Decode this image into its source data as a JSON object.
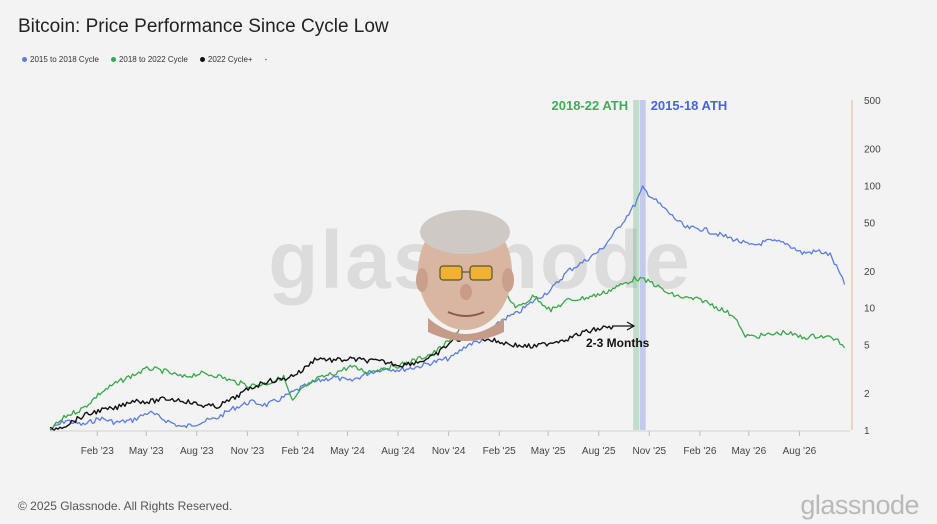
{
  "header": {
    "title": "Bitcoin: Price Performance Since Cycle Low"
  },
  "legend": {
    "items": [
      {
        "label": "2015 to 2018 Cycle",
        "color": "#5b7de0"
      },
      {
        "label": "2018 to 2022 Cycle",
        "color": "#3aa74a"
      },
      {
        "label": "2022 Cycle+",
        "color": "#111111"
      }
    ],
    "extra": "-"
  },
  "watermark": "glassnode",
  "footer": {
    "copyright": "© 2025 Glassnode. All Rights Reserved.",
    "brand": "glassnode"
  },
  "colors": {
    "blue_series": "#5b7de0",
    "green_series": "#3aa74a",
    "black_series": "#111111",
    "ath_blue_text": "#4566d6",
    "ath_green_text": "#48a85a",
    "right_axis": "#e0b88a"
  },
  "chart_data": {
    "type": "line",
    "title": "Bitcoin: Price Performance Since Cycle Low",
    "x_ticks": [
      "Feb '23",
      "May '23",
      "Aug '23",
      "Nov '23",
      "Feb '24",
      "May '24",
      "Aug '24",
      "Nov '24",
      "Feb '25",
      "May '25",
      "Aug '25",
      "Nov '25",
      "Feb '26",
      "May '26",
      "Aug '26"
    ],
    "y_scale": "log",
    "y_ticks": [
      1,
      2,
      5,
      10,
      20,
      50,
      100,
      200,
      500
    ],
    "ylim": [
      1,
      500
    ],
    "xlim": [
      "2022-11-21",
      "2026-11-15"
    ],
    "x_format": "date",
    "grid": false,
    "legend_position": "top-left",
    "annotations": [
      {
        "text": "2018-22 ATH",
        "x": "2025-10-22"
      },
      {
        "text": "2015-18 ATH",
        "x": "2025-11-03"
      },
      {
        "text": "2-3 Months",
        "x": "2025-09-15",
        "y": 5
      }
    ],
    "series": [
      {
        "name": "2015 to 2018 Cycle",
        "color": "#5b7de0",
        "points": [
          [
            "2022-11-21",
            1.0
          ],
          [
            "2022-12-20",
            1.2
          ],
          [
            "2023-01-20",
            1.1
          ],
          [
            "2023-02-20",
            1.25
          ],
          [
            "2023-03-20",
            1.15
          ],
          [
            "2023-04-20",
            1.2
          ],
          [
            "2023-05-20",
            1.4
          ],
          [
            "2023-06-20",
            1.2
          ],
          [
            "2023-07-20",
            1.05
          ],
          [
            "2023-08-20",
            1.15
          ],
          [
            "2023-09-20",
            1.25
          ],
          [
            "2023-10-20",
            1.5
          ],
          [
            "2023-11-20",
            1.7
          ],
          [
            "2023-12-20",
            1.6
          ],
          [
            "2024-01-20",
            1.85
          ],
          [
            "2024-02-20",
            2.2
          ],
          [
            "2024-03-20",
            2.5
          ],
          [
            "2024-04-20",
            2.7
          ],
          [
            "2024-05-20",
            2.5
          ],
          [
            "2024-06-20",
            2.9
          ],
          [
            "2024-07-20",
            3.2
          ],
          [
            "2024-08-20",
            3.1
          ],
          [
            "2024-09-20",
            3.3
          ],
          [
            "2024-10-20",
            3.6
          ],
          [
            "2024-11-20",
            3.9
          ],
          [
            "2024-12-20",
            5.0
          ],
          [
            "2025-01-20",
            5.5
          ],
          [
            "2025-02-20",
            8.0
          ],
          [
            "2025-03-20",
            9.0
          ],
          [
            "2025-04-20",
            11.5
          ],
          [
            "2025-05-20",
            14.0
          ],
          [
            "2025-06-20",
            20.0
          ],
          [
            "2025-07-20",
            24.0
          ],
          [
            "2025-08-20",
            30.0
          ],
          [
            "2025-09-20",
            45.0
          ],
          [
            "2025-10-20",
            70.0
          ],
          [
            "2025-11-03",
            95.0
          ],
          [
            "2025-11-20",
            80.0
          ],
          [
            "2025-12-20",
            60.0
          ],
          [
            "2026-01-20",
            45.0
          ],
          [
            "2026-02-20",
            44.0
          ],
          [
            "2026-03-20",
            40.0
          ],
          [
            "2026-04-20",
            36.0
          ],
          [
            "2026-05-20",
            32.0
          ],
          [
            "2026-06-20",
            35.0
          ],
          [
            "2026-07-20",
            34.0
          ],
          [
            "2026-08-20",
            28.0
          ],
          [
            "2026-09-20",
            29.0
          ],
          [
            "2026-10-10",
            27.0
          ],
          [
            "2026-10-25",
            20.0
          ],
          [
            "2026-11-05",
            15.5
          ]
        ]
      },
      {
        "name": "2018 to 2022 Cycle",
        "color": "#3aa74a",
        "points": [
          [
            "2022-11-21",
            1.0
          ],
          [
            "2022-12-20",
            1.3
          ],
          [
            "2023-01-20",
            1.5
          ],
          [
            "2023-02-20",
            2.0
          ],
          [
            "2023-03-20",
            2.4
          ],
          [
            "2023-04-20",
            2.8
          ],
          [
            "2023-05-20",
            3.2
          ],
          [
            "2023-06-20",
            3.0
          ],
          [
            "2023-07-20",
            2.7
          ],
          [
            "2023-08-20",
            2.9
          ],
          [
            "2023-09-20",
            2.8
          ],
          [
            "2023-10-20",
            2.5
          ],
          [
            "2023-11-20",
            2.3
          ],
          [
            "2023-12-20",
            2.4
          ],
          [
            "2024-01-20",
            2.7
          ],
          [
            "2024-02-05",
            1.7
          ],
          [
            "2024-02-20",
            2.1
          ],
          [
            "2024-03-20",
            2.6
          ],
          [
            "2024-04-20",
            2.9
          ],
          [
            "2024-05-20",
            3.3
          ],
          [
            "2024-06-20",
            3.0
          ],
          [
            "2024-07-20",
            3.2
          ],
          [
            "2024-08-20",
            3.4
          ],
          [
            "2024-09-20",
            3.8
          ],
          [
            "2024-10-20",
            4.3
          ],
          [
            "2024-11-20",
            5.5
          ],
          [
            "2024-12-20",
            8.5
          ],
          [
            "2025-01-20",
            11.0
          ],
          [
            "2025-02-20",
            13.5
          ],
          [
            "2025-03-20",
            10.0
          ],
          [
            "2025-04-20",
            12.5
          ],
          [
            "2025-05-20",
            9.5
          ],
          [
            "2025-06-20",
            11.5
          ],
          [
            "2025-07-20",
            12.0
          ],
          [
            "2025-08-20",
            13.0
          ],
          [
            "2025-09-20",
            15.0
          ],
          [
            "2025-10-22",
            17.5
          ],
          [
            "2025-11-20",
            16.0
          ],
          [
            "2025-12-20",
            13.0
          ],
          [
            "2026-01-20",
            12.0
          ],
          [
            "2026-02-20",
            11.5
          ],
          [
            "2026-03-20",
            10.0
          ],
          [
            "2026-04-20",
            8.5
          ],
          [
            "2026-05-05",
            6.0
          ],
          [
            "2026-05-20",
            5.8
          ],
          [
            "2026-06-20",
            6.0
          ],
          [
            "2026-07-20",
            6.3
          ],
          [
            "2026-08-20",
            5.7
          ],
          [
            "2026-09-20",
            5.9
          ],
          [
            "2026-10-20",
            5.6
          ],
          [
            "2026-11-05",
            4.7
          ]
        ]
      },
      {
        "name": "2022 Cycle+",
        "color": "#111111",
        "points": [
          [
            "2022-11-21",
            1.0
          ],
          [
            "2022-12-20",
            1.1
          ],
          [
            "2023-01-20",
            1.3
          ],
          [
            "2023-02-20",
            1.45
          ],
          [
            "2023-03-20",
            1.5
          ],
          [
            "2023-04-20",
            1.75
          ],
          [
            "2023-05-20",
            1.7
          ],
          [
            "2023-06-20",
            1.8
          ],
          [
            "2023-07-20",
            1.75
          ],
          [
            "2023-08-20",
            1.6
          ],
          [
            "2023-09-20",
            1.55
          ],
          [
            "2023-10-20",
            1.8
          ],
          [
            "2023-11-20",
            2.2
          ],
          [
            "2023-12-20",
            2.5
          ],
          [
            "2024-01-20",
            2.6
          ],
          [
            "2024-02-20",
            3.0
          ],
          [
            "2024-03-20",
            3.9
          ],
          [
            "2024-04-20",
            3.7
          ],
          [
            "2024-05-20",
            3.8
          ],
          [
            "2024-06-20",
            3.7
          ],
          [
            "2024-07-20",
            3.6
          ],
          [
            "2024-08-20",
            3.4
          ],
          [
            "2024-09-20",
            3.6
          ],
          [
            "2024-10-20",
            4.0
          ],
          [
            "2024-11-20",
            5.3
          ],
          [
            "2024-12-20",
            5.8
          ],
          [
            "2025-01-20",
            5.6
          ],
          [
            "2025-02-20",
            5.2
          ],
          [
            "2025-03-20",
            4.9
          ],
          [
            "2025-04-20",
            4.8
          ],
          [
            "2025-05-20",
            5.2
          ],
          [
            "2025-06-20",
            5.6
          ],
          [
            "2025-07-20",
            6.3
          ],
          [
            "2025-08-20",
            6.8
          ],
          [
            "2025-09-10",
            7.0
          ]
        ]
      }
    ]
  }
}
